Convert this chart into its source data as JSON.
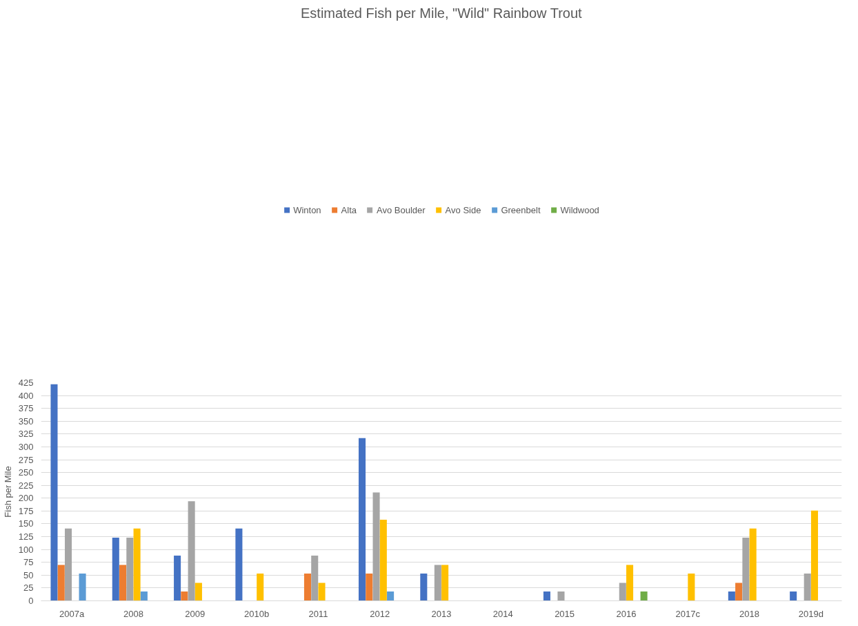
{
  "chart_data": {
    "type": "bar",
    "title": "Estimated Fish per Mile, \"Wild\" Rainbow Trout",
    "ylabel": "Fish per Mile",
    "categories": [
      "2007a",
      "2008",
      "2009",
      "2010b",
      "2011",
      "2012",
      "2013",
      "2014",
      "2015",
      "2016",
      "2017c",
      "2018",
      "2019d"
    ],
    "series": [
      {
        "name": "Winton",
        "color": "#4472c4",
        "values": [
          422,
          123,
          88,
          141,
          null,
          317,
          53,
          null,
          18,
          null,
          null,
          18,
          18
        ]
      },
      {
        "name": "Alta",
        "color": "#ed7d31",
        "values": [
          70,
          70,
          18,
          null,
          53,
          53,
          null,
          null,
          null,
          null,
          null,
          35,
          null
        ]
      },
      {
        "name": "Avo Boulder",
        "color": "#a5a5a5",
        "values": [
          141,
          123,
          194,
          null,
          88,
          211,
          70,
          null,
          18,
          35,
          null,
          123,
          53
        ]
      },
      {
        "name": "Avo Side",
        "color": "#ffc000",
        "values": [
          null,
          141,
          35,
          53,
          35,
          158,
          70,
          null,
          null,
          70,
          53,
          141,
          176
        ]
      },
      {
        "name": "Greenbelt",
        "color": "#5b9bd5",
        "values": [
          53,
          18,
          null,
          null,
          null,
          18,
          null,
          null,
          null,
          null,
          null,
          null,
          null
        ]
      },
      {
        "name": "Wildwood",
        "color": "#70ad47",
        "values": [
          null,
          null,
          null,
          null,
          null,
          null,
          null,
          null,
          null,
          18,
          null,
          null,
          null
        ]
      }
    ],
    "ylim": [
      0,
      425
    ],
    "yticks": [
      0,
      25,
      50,
      75,
      100,
      125,
      150,
      175,
      200,
      225,
      250,
      275,
      300,
      325,
      350,
      375,
      400,
      425
    ],
    "grid": "y",
    "legend": "top"
  }
}
